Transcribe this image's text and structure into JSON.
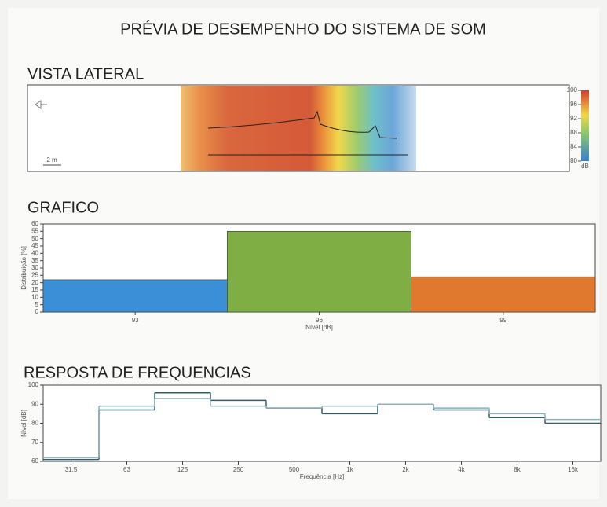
{
  "title": "PRÉVIA DE DESEMPENHO DO SISTEMA DE SOM",
  "chart_data": [
    {
      "type": "heatmap",
      "title": "VISTA LATERAL",
      "scale_label": "2 m",
      "colorbar_label": "dB",
      "colorbar_lim": [
        80,
        100
      ],
      "colorbar_ticks": [
        80,
        84,
        88,
        92,
        96,
        100
      ]
    },
    {
      "type": "bar",
      "title": "GRAFICO",
      "ylabel": "Distribuição [%]",
      "xlabel": "Nível [dB]",
      "categories": [
        "93",
        "96",
        "99"
      ],
      "values": [
        22,
        55,
        24
      ],
      "colors": [
        "#3a8fd6",
        "#7fae44",
        "#e0782e"
      ],
      "ylim": [
        0,
        60
      ],
      "yticks": [
        0,
        5,
        10,
        15,
        20,
        25,
        30,
        35,
        40,
        45,
        50,
        55,
        60
      ]
    },
    {
      "type": "step",
      "title": "RESPOSTA DE FREQUENCIAS",
      "ylabel": "Nível [dB]",
      "xlabel": "Frequência [Hz]",
      "categories": [
        "31.5",
        "63",
        "125",
        "250",
        "500",
        "1k",
        "2k",
        "4k",
        "8k",
        "16k"
      ],
      "series": [
        {
          "color": "#2f5f6a",
          "values": [
            61,
            87,
            96,
            92,
            88,
            85,
            90,
            87,
            83,
            80
          ]
        },
        {
          "color": "#8fb0b8",
          "values": [
            62,
            89,
            93,
            89,
            88,
            89,
            90,
            88,
            85,
            82
          ]
        }
      ],
      "ylim": [
        60,
        100
      ],
      "yticks": [
        60,
        70,
        80,
        90,
        100
      ]
    }
  ]
}
